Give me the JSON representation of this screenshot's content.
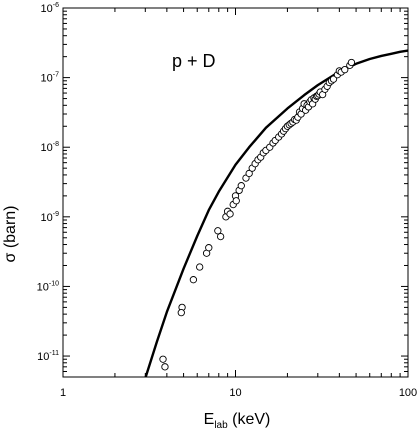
{
  "chart_data": {
    "type": "scatter",
    "xscale": "log",
    "yscale": "log",
    "xlim": [
      1,
      100
    ],
    "ylim": [
      5e-12,
      1e-06
    ],
    "x_ticks": [
      {
        "value": 1,
        "label": "1"
      },
      {
        "value": 10,
        "label": "10"
      },
      {
        "value": 100,
        "label": "100"
      }
    ],
    "y_ticks": [
      {
        "value": 1e-11,
        "base": "10",
        "exp": "-11"
      },
      {
        "value": 1e-10,
        "base": "10",
        "exp": "-10"
      },
      {
        "value": 1e-09,
        "base": "10",
        "exp": "-9"
      },
      {
        "value": 1e-08,
        "base": "10",
        "exp": "-8"
      },
      {
        "value": 1e-07,
        "base": "10",
        "exp": "-7"
      },
      {
        "value": 1e-06,
        "base": "10",
        "exp": "-6"
      }
    ],
    "xlabel": {
      "main": "E",
      "sub": "lab",
      "rest": " (keV)"
    },
    "ylabel": "σ (barn)",
    "annotation": "p + D",
    "grid": false,
    "series": [
      {
        "kind": "line",
        "color": "#000000",
        "points": [
          [
            3.0,
            4.8e-12
          ],
          [
            3.5,
            1.6e-11
          ],
          [
            4.0,
            4.3e-11
          ],
          [
            5.0,
            1.8e-10
          ],
          [
            6.0,
            5.3e-10
          ],
          [
            7.0,
            1.25e-09
          ],
          [
            8.0,
            2.3e-09
          ],
          [
            10.0,
            5.6e-09
          ],
          [
            12.0,
            1e-08
          ],
          [
            15.0,
            1.9e-08
          ],
          [
            20.0,
            3.6e-08
          ],
          [
            25.0,
            5.6e-08
          ],
          [
            30.0,
            7.8e-08
          ],
          [
            40.0,
            1.22e-07
          ],
          [
            50.0,
            1.58e-07
          ],
          [
            60.0,
            1.85e-07
          ],
          [
            70.0,
            2.05e-07
          ],
          [
            80.0,
            2.2e-07
          ],
          [
            90.0,
            2.35e-07
          ],
          [
            100.0,
            2.45e-07
          ]
        ]
      },
      {
        "kind": "markers",
        "marker": "open-circle",
        "color": "#000000",
        "points": [
          [
            3.8,
            9e-12
          ],
          [
            3.9,
            7e-12
          ],
          [
            4.9,
            5e-11
          ],
          [
            4.85,
            4.2e-11
          ],
          [
            5.7,
            1.25e-10
          ],
          [
            6.2,
            1.9e-10
          ],
          [
            6.8,
            3e-10
          ],
          [
            7.0,
            3.6e-10
          ],
          [
            7.9,
            6.3e-10
          ],
          [
            8.2,
            5.2e-10
          ],
          [
            8.8,
            1e-09
          ],
          [
            9.0,
            1.2e-09
          ],
          [
            9.3,
            1.1e-09
          ],
          [
            9.7,
            1.5e-09
          ],
          [
            10.0,
            2e-09
          ],
          [
            10.1,
            1.7e-09
          ],
          [
            10.5,
            2.4e-09
          ],
          [
            10.8,
            2.8e-09
          ],
          [
            11.5,
            3.6e-09
          ],
          [
            12.0,
            4.2e-09
          ],
          [
            12.5,
            5e-09
          ],
          [
            13.0,
            5.8e-09
          ],
          [
            13.5,
            6.6e-09
          ],
          [
            14.0,
            7.2e-09
          ],
          [
            14.5,
            8.3e-09
          ],
          [
            15.0,
            9e-09
          ],
          [
            15.8,
            1e-08
          ],
          [
            16.5,
            1.15e-08
          ],
          [
            17.0,
            1.25e-08
          ],
          [
            17.8,
            1.4e-08
          ],
          [
            18.5,
            1.55e-08
          ],
          [
            19.0,
            1.7e-08
          ],
          [
            19.5,
            1.85e-08
          ],
          [
            20.0,
            2e-08
          ],
          [
            20.5,
            2.1e-08
          ],
          [
            21.0,
            2.2e-08
          ],
          [
            21.5,
            2.3e-08
          ],
          [
            22.0,
            2.5e-08
          ],
          [
            22.5,
            2.45e-08
          ],
          [
            23.0,
            2.7e-08
          ],
          [
            23.5,
            3.2e-08
          ],
          [
            24.0,
            3e-08
          ],
          [
            24.5,
            3.6e-08
          ],
          [
            25.0,
            4.2e-08
          ],
          [
            25.5,
            3.4e-08
          ],
          [
            26.0,
            4e-08
          ],
          [
            26.5,
            3.8e-08
          ],
          [
            27.0,
            4.5e-08
          ],
          [
            27.5,
            4.8e-08
          ],
          [
            28.0,
            4.2e-08
          ],
          [
            28.5,
            5.1e-08
          ],
          [
            29.0,
            4.9e-08
          ],
          [
            29.5,
            5.4e-08
          ],
          [
            30.0,
            5.5e-08
          ],
          [
            30.5,
            5.8e-08
          ],
          [
            31.0,
            6.2e-08
          ],
          [
            32.0,
            5.7e-08
          ],
          [
            33.0,
            6.8e-08
          ],
          [
            34.0,
            7.5e-08
          ],
          [
            35.0,
            8.5e-08
          ],
          [
            36.0,
            9e-08
          ],
          [
            37.0,
            9.5e-08
          ],
          [
            39.0,
            1.1e-07
          ],
          [
            40.0,
            1.25e-07
          ],
          [
            41.0,
            1.2e-07
          ],
          [
            43.0,
            1.3e-07
          ],
          [
            46.0,
            1.5e-07
          ],
          [
            47.0,
            1.65e-07
          ]
        ]
      }
    ]
  }
}
